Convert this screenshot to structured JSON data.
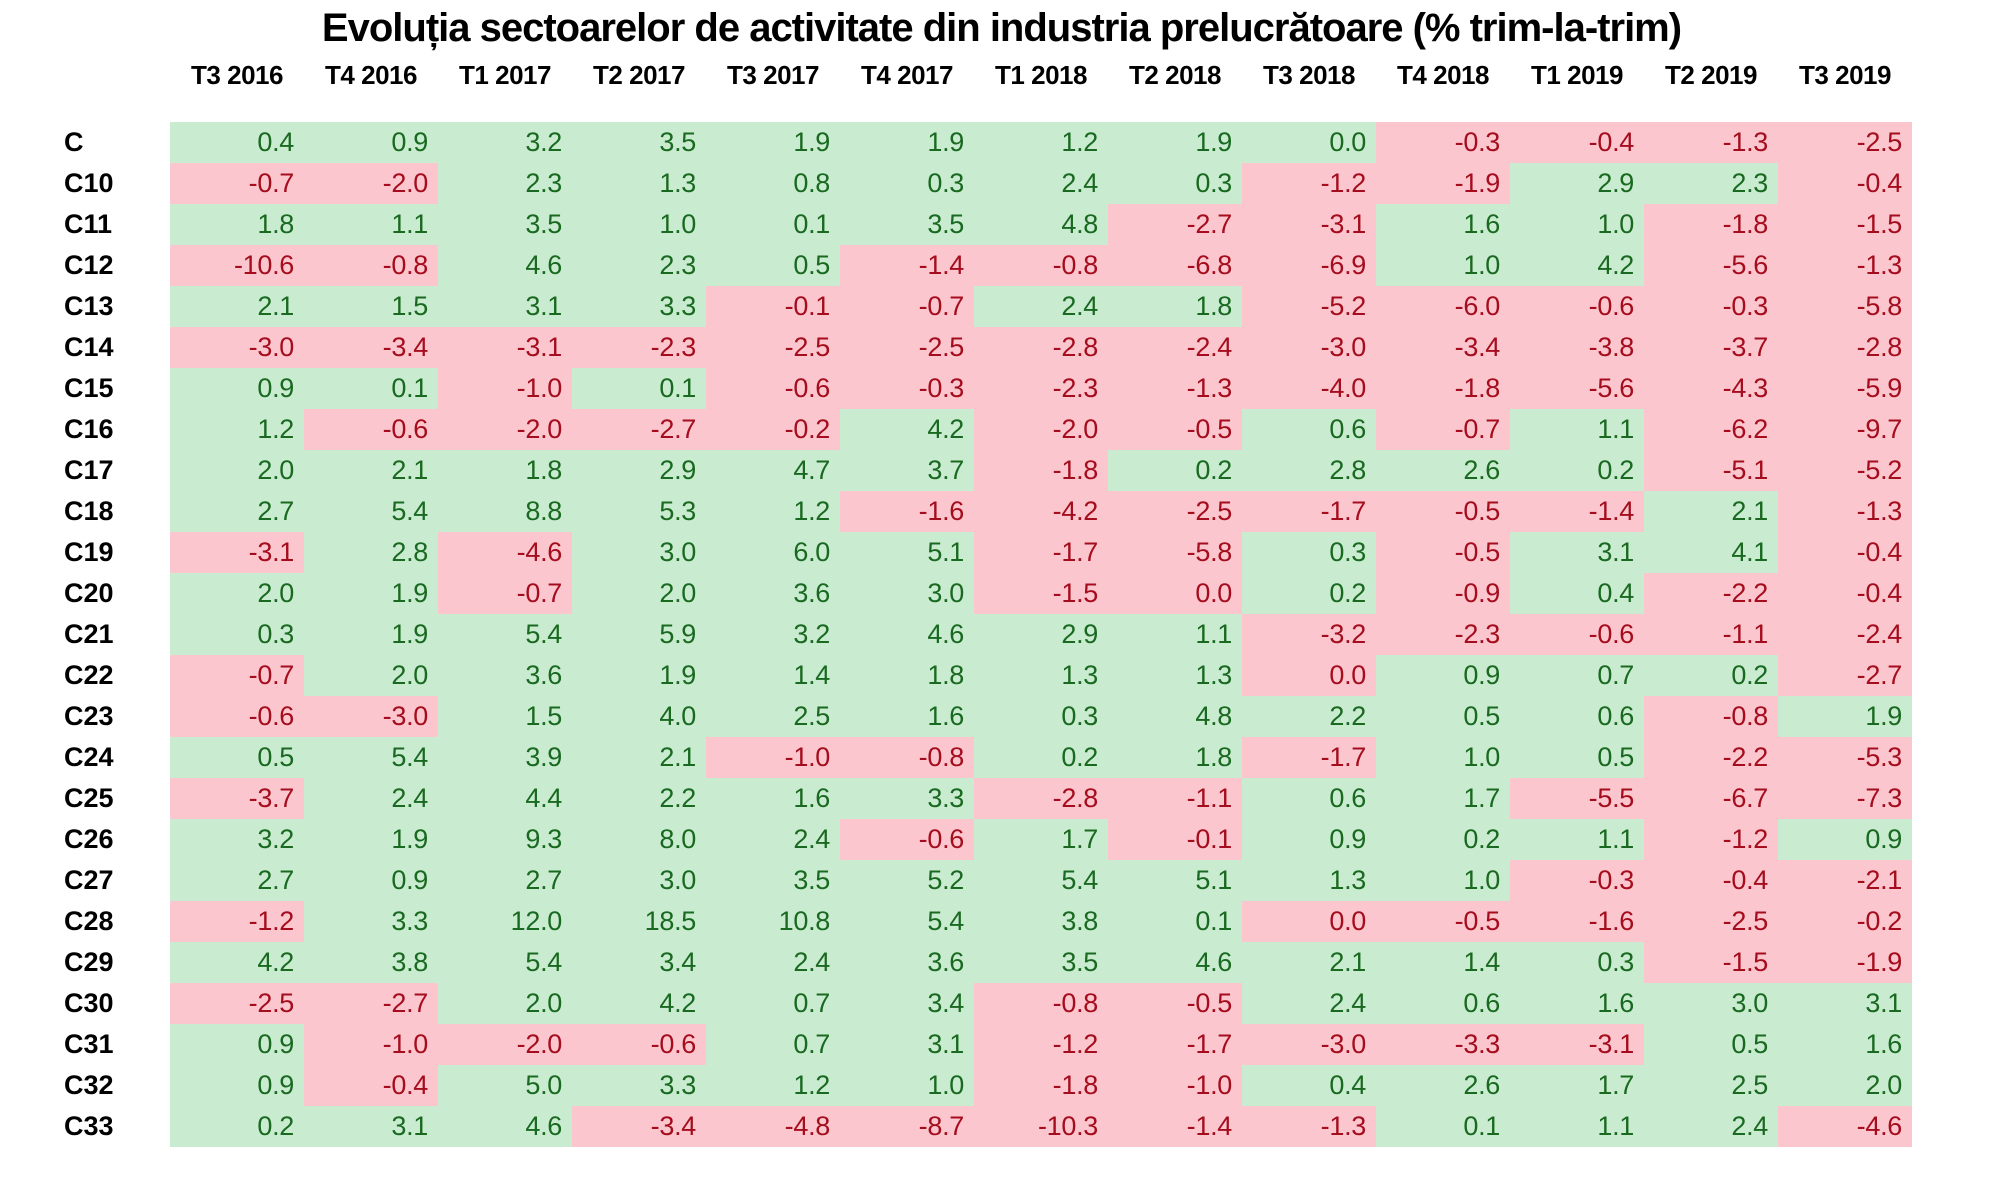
{
  "colors": {
    "positive_bg": "#c9ecd1",
    "positive_text": "#1a6920",
    "negative_bg": "#fbc6cd",
    "negative_text": "#a50d1e"
  },
  "chart_data": {
    "type": "heatmap",
    "title": "Evoluția sectoarelor de activitate din industria prelucrătoare (% trim-la-trim)",
    "columns": [
      "T3 2016",
      "T4 2016",
      "T1 2017",
      "T2 2017",
      "T3 2017",
      "T4 2017",
      "T1 2018",
      "T2 2018",
      "T3 2018",
      "T4 2018",
      "T1 2019",
      "T2 2019",
      "T3 2019"
    ],
    "rows": [
      {
        "label": "C",
        "values": [
          "0.4",
          "0.9",
          "3.2",
          "3.5",
          "1.9",
          "1.9",
          "1.2",
          "1.9",
          "0.0",
          "-0.3",
          "-0.4",
          "-1.3",
          "-2.5"
        ],
        "cell_colors": "gggggggggrrrr"
      },
      {
        "label": "C10",
        "values": [
          "-0.7",
          "-2.0",
          "2.3",
          "1.3",
          "0.8",
          "0.3",
          "2.4",
          "0.3",
          "-1.2",
          "-1.9",
          "2.9",
          "2.3",
          "-0.4"
        ],
        "cell_colors": "rrggggggrrggr"
      },
      {
        "label": "C11",
        "values": [
          "1.8",
          "1.1",
          "3.5",
          "1.0",
          "0.1",
          "3.5",
          "4.8",
          "-2.7",
          "-3.1",
          "1.6",
          "1.0",
          "-1.8",
          "-1.5"
        ],
        "cell_colors": "gggggggrrggrr"
      },
      {
        "label": "C12",
        "values": [
          "-10.6",
          "-0.8",
          "4.6",
          "2.3",
          "0.5",
          "-1.4",
          "-0.8",
          "-6.8",
          "-6.9",
          "1.0",
          "4.2",
          "-5.6",
          "-1.3"
        ],
        "cell_colors": "rrgggrrrrggrr"
      },
      {
        "label": "C13",
        "values": [
          "2.1",
          "1.5",
          "3.1",
          "3.3",
          "-0.1",
          "-0.7",
          "2.4",
          "1.8",
          "-5.2",
          "-6.0",
          "-0.6",
          "-0.3",
          "-5.8"
        ],
        "cell_colors": "ggggrrggrrrrr"
      },
      {
        "label": "C14",
        "values": [
          "-3.0",
          "-3.4",
          "-3.1",
          "-2.3",
          "-2.5",
          "-2.5",
          "-2.8",
          "-2.4",
          "-3.0",
          "-3.4",
          "-3.8",
          "-3.7",
          "-2.8"
        ],
        "cell_colors": "rrrrrrrrrrrrr"
      },
      {
        "label": "C15",
        "values": [
          "0.9",
          "0.1",
          "-1.0",
          "0.1",
          "-0.6",
          "-0.3",
          "-2.3",
          "-1.3",
          "-4.0",
          "-1.8",
          "-5.6",
          "-4.3",
          "-5.9"
        ],
        "cell_colors": "ggrgrrrrrrrrr"
      },
      {
        "label": "C16",
        "values": [
          "1.2",
          "-0.6",
          "-2.0",
          "-2.7",
          "-0.2",
          "4.2",
          "-2.0",
          "-0.5",
          "0.6",
          "-0.7",
          "1.1",
          "-6.2",
          "-9.7"
        ],
        "cell_colors": "grrrrgrrgrgrr"
      },
      {
        "label": "C17",
        "values": [
          "2.0",
          "2.1",
          "1.8",
          "2.9",
          "4.7",
          "3.7",
          "-1.8",
          "0.2",
          "2.8",
          "2.6",
          "0.2",
          "-5.1",
          "-5.2"
        ],
        "cell_colors": "ggggggrggggrr"
      },
      {
        "label": "C18",
        "values": [
          "2.7",
          "5.4",
          "8.8",
          "5.3",
          "1.2",
          "-1.6",
          "-4.2",
          "-2.5",
          "-1.7",
          "-0.5",
          "-1.4",
          "2.1",
          "-1.3"
        ],
        "cell_colors": "gggggrrrrrrgr"
      },
      {
        "label": "C19",
        "values": [
          "-3.1",
          "2.8",
          "-4.6",
          "3.0",
          "6.0",
          "5.1",
          "-1.7",
          "-5.8",
          "0.3",
          "-0.5",
          "3.1",
          "4.1",
          "-0.4"
        ],
        "cell_colors": "rgrgggrrgrggr"
      },
      {
        "label": "C20",
        "values": [
          "2.0",
          "1.9",
          "-0.7",
          "2.0",
          "3.6",
          "3.0",
          "-1.5",
          "0.0",
          "0.2",
          "-0.9",
          "0.4",
          "-2.2",
          "-0.4"
        ],
        "cell_colors": "ggrgggrrgrgrr"
      },
      {
        "label": "C21",
        "values": [
          "0.3",
          "1.9",
          "5.4",
          "5.9",
          "3.2",
          "4.6",
          "2.9",
          "1.1",
          "-3.2",
          "-2.3",
          "-0.6",
          "-1.1",
          "-2.4"
        ],
        "cell_colors": "ggggggggrrrrr"
      },
      {
        "label": "C22",
        "values": [
          "-0.7",
          "2.0",
          "3.6",
          "1.9",
          "1.4",
          "1.8",
          "1.3",
          "1.3",
          "0.0",
          "0.9",
          "0.7",
          "0.2",
          "-2.7"
        ],
        "cell_colors": "rgggggggrgggr"
      },
      {
        "label": "C23",
        "values": [
          "-0.6",
          "-3.0",
          "1.5",
          "4.0",
          "2.5",
          "1.6",
          "0.3",
          "4.8",
          "2.2",
          "0.5",
          "0.6",
          "-0.8",
          "1.9"
        ],
        "cell_colors": "rrgggggggggrg"
      },
      {
        "label": "C24",
        "values": [
          "0.5",
          "5.4",
          "3.9",
          "2.1",
          "-1.0",
          "-0.8",
          "0.2",
          "1.8",
          "-1.7",
          "1.0",
          "0.5",
          "-2.2",
          "-5.3"
        ],
        "cell_colors": "ggggrrggrggrr"
      },
      {
        "label": "C25",
        "values": [
          "-3.7",
          "2.4",
          "4.4",
          "2.2",
          "1.6",
          "3.3",
          "-2.8",
          "-1.1",
          "0.6",
          "1.7",
          "-5.5",
          "-6.7",
          "-7.3"
        ],
        "cell_colors": "rgggggrrggrrr"
      },
      {
        "label": "C26",
        "values": [
          "3.2",
          "1.9",
          "9.3",
          "8.0",
          "2.4",
          "-0.6",
          "1.7",
          "-0.1",
          "0.9",
          "0.2",
          "1.1",
          "-1.2",
          "0.9"
        ],
        "cell_colors": "gggggrgrgggrg"
      },
      {
        "label": "C27",
        "values": [
          "2.7",
          "0.9",
          "2.7",
          "3.0",
          "3.5",
          "5.2",
          "5.4",
          "5.1",
          "1.3",
          "1.0",
          "-0.3",
          "-0.4",
          "-2.1"
        ],
        "cell_colors": "ggggggggggrrr"
      },
      {
        "label": "C28",
        "values": [
          "-1.2",
          "3.3",
          "12.0",
          "18.5",
          "10.8",
          "5.4",
          "3.8",
          "0.1",
          "0.0",
          "-0.5",
          "-1.6",
          "-2.5",
          "-0.2"
        ],
        "cell_colors": "rgggggggrrrrr"
      },
      {
        "label": "C29",
        "values": [
          "4.2",
          "3.8",
          "5.4",
          "3.4",
          "2.4",
          "3.6",
          "3.5",
          "4.6",
          "2.1",
          "1.4",
          "0.3",
          "-1.5",
          "-1.9"
        ],
        "cell_colors": "gggggggggggrr"
      },
      {
        "label": "C30",
        "values": [
          "-2.5",
          "-2.7",
          "2.0",
          "4.2",
          "0.7",
          "3.4",
          "-0.8",
          "-0.5",
          "2.4",
          "0.6",
          "1.6",
          "3.0",
          "3.1"
        ],
        "cell_colors": "rrggggrrggggg"
      },
      {
        "label": "C31",
        "values": [
          "0.9",
          "-1.0",
          "-2.0",
          "-0.6",
          "0.7",
          "3.1",
          "-1.2",
          "-1.7",
          "-3.0",
          "-3.3",
          "-3.1",
          "0.5",
          "1.6"
        ],
        "cell_colors": "grrrggrrrrrgg"
      },
      {
        "label": "C32",
        "values": [
          "0.9",
          "-0.4",
          "5.0",
          "3.3",
          "1.2",
          "1.0",
          "-1.8",
          "-1.0",
          "0.4",
          "2.6",
          "1.7",
          "2.5",
          "2.0"
        ],
        "cell_colors": "grggggrrggggg"
      },
      {
        "label": "C33",
        "values": [
          "0.2",
          "3.1",
          "4.6",
          "-3.4",
          "-4.8",
          "-8.7",
          "-10.3",
          "-1.4",
          "-1.3",
          "0.1",
          "1.1",
          "2.4",
          "-4.6"
        ],
        "cell_colors": "gggrrrrrrgggr"
      }
    ]
  }
}
